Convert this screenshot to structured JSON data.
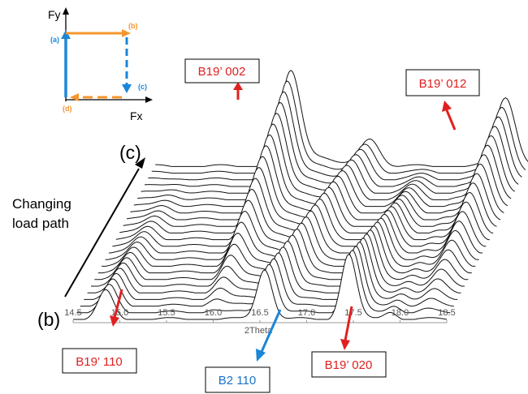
{
  "chart_data": {
    "type": "line",
    "title": "",
    "xlabel": "2Theta",
    "ylabel": "",
    "xlim": [
      14.5,
      18.5
    ],
    "x_ticks": [
      "14.5",
      "15.0",
      "15.5",
      "16.0",
      "16.5",
      "17.0",
      "17.5",
      "18.0",
      "18.5"
    ],
    "grid": false,
    "num_patterns": 24,
    "peaks": [
      {
        "label": "B19’ 110",
        "position": 14.85,
        "start_height": 0.3,
        "end_height": 0.0
      },
      {
        "label": "B19’ 002",
        "position": 15.95,
        "start_height": 0.0,
        "end_height": 1.0
      },
      {
        "label": "B2 110",
        "position": 16.55,
        "start_height": 0.55,
        "end_height": 0.3
      },
      {
        "label": "B19’ 020",
        "position": 17.45,
        "start_height": 0.7,
        "end_height": 0.0
      },
      {
        "label": "B19’ 012",
        "position": 18.25,
        "start_height": 0.0,
        "end_height": 0.75
      }
    ],
    "annotations": {
      "start_state": "(b)",
      "end_state": "(c)",
      "path_label_line1": "Changing",
      "path_label_line2": "load path"
    }
  },
  "labels": {
    "b19_002": "B19’ 002",
    "b19_012": "B19’ 012",
    "b19_110": "B19’ 110",
    "b2_110": "B2 110",
    "b19_020": "B19’ 020"
  },
  "inset": {
    "fy": "Fy",
    "fx": "Fx",
    "a": "(a)",
    "b": "(b)",
    "c": "(c)",
    "d": "(d)"
  },
  "colors": {
    "red": "#e02020",
    "blue": "#1a86d8",
    "orange": "#f5962e",
    "label_blue": "#1a73c6"
  }
}
